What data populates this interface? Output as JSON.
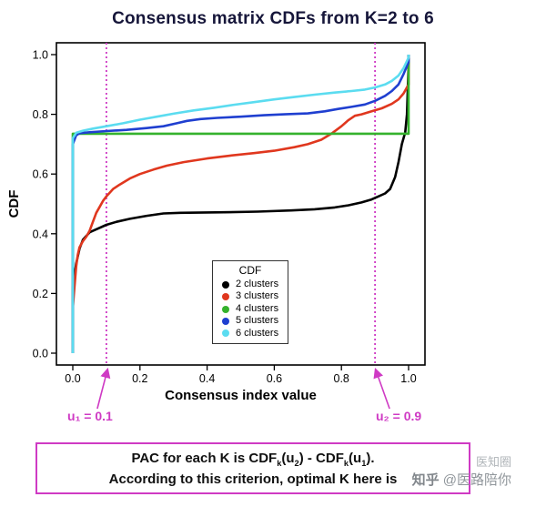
{
  "chart_data": {
    "type": "line",
    "title": "Consensus matrix CDFs from K=2 to 6",
    "xlabel": "Consensus index value",
    "ylabel": "CDF",
    "xlim": [
      0,
      1
    ],
    "ylim": [
      0,
      1
    ],
    "x_ticks": [
      0.0,
      0.2,
      0.4,
      0.6,
      0.8,
      1.0
    ],
    "y_ticks": [
      0.0,
      0.2,
      0.4,
      0.6,
      0.8,
      1.0
    ],
    "grid": false,
    "legend_title": "CDF",
    "legend_position": "inside-bottom-center",
    "series": [
      {
        "name": "2 clusters",
        "color": "#000000",
        "points": [
          [
            0,
            0
          ],
          [
            0,
            0.22
          ],
          [
            0.005,
            0.26
          ],
          [
            0.01,
            0.3
          ],
          [
            0.02,
            0.35
          ],
          [
            0.03,
            0.38
          ],
          [
            0.05,
            0.405
          ],
          [
            0.07,
            0.415
          ],
          [
            0.1,
            0.43
          ],
          [
            0.13,
            0.44
          ],
          [
            0.17,
            0.45
          ],
          [
            0.22,
            0.46
          ],
          [
            0.27,
            0.468
          ],
          [
            0.32,
            0.47
          ],
          [
            0.45,
            0.472
          ],
          [
            0.55,
            0.474
          ],
          [
            0.65,
            0.478
          ],
          [
            0.72,
            0.482
          ],
          [
            0.78,
            0.488
          ],
          [
            0.82,
            0.495
          ],
          [
            0.86,
            0.505
          ],
          [
            0.89,
            0.515
          ],
          [
            0.91,
            0.525
          ],
          [
            0.93,
            0.535
          ],
          [
            0.945,
            0.55
          ],
          [
            0.96,
            0.59
          ],
          [
            0.97,
            0.64
          ],
          [
            0.98,
            0.7
          ],
          [
            0.99,
            0.74
          ],
          [
            0.995,
            0.8
          ],
          [
            1,
            0.97
          ],
          [
            1,
            1
          ]
        ]
      },
      {
        "name": "3 clusters",
        "color": "#e0371e",
        "points": [
          [
            0,
            0
          ],
          [
            0,
            0.15
          ],
          [
            0.005,
            0.22
          ],
          [
            0.01,
            0.29
          ],
          [
            0.015,
            0.33
          ],
          [
            0.02,
            0.355
          ],
          [
            0.03,
            0.375
          ],
          [
            0.04,
            0.39
          ],
          [
            0.05,
            0.41
          ],
          [
            0.06,
            0.44
          ],
          [
            0.07,
            0.47
          ],
          [
            0.08,
            0.49
          ],
          [
            0.09,
            0.51
          ],
          [
            0.1,
            0.525
          ],
          [
            0.12,
            0.55
          ],
          [
            0.14,
            0.565
          ],
          [
            0.17,
            0.585
          ],
          [
            0.2,
            0.6
          ],
          [
            0.24,
            0.615
          ],
          [
            0.28,
            0.628
          ],
          [
            0.33,
            0.64
          ],
          [
            0.4,
            0.652
          ],
          [
            0.47,
            0.662
          ],
          [
            0.54,
            0.67
          ],
          [
            0.6,
            0.678
          ],
          [
            0.66,
            0.69
          ],
          [
            0.7,
            0.7
          ],
          [
            0.74,
            0.715
          ],
          [
            0.77,
            0.735
          ],
          [
            0.8,
            0.76
          ],
          [
            0.82,
            0.78
          ],
          [
            0.84,
            0.795
          ],
          [
            0.86,
            0.8
          ],
          [
            0.89,
            0.81
          ],
          [
            0.92,
            0.82
          ],
          [
            0.95,
            0.835
          ],
          [
            0.97,
            0.85
          ],
          [
            0.985,
            0.87
          ],
          [
            1,
            0.9
          ],
          [
            1,
            1
          ]
        ]
      },
      {
        "name": "4 clusters",
        "color": "#35b22d",
        "points": [
          [
            0,
            0
          ],
          [
            0,
            0.735
          ],
          [
            1,
            0.735
          ],
          [
            1,
            1
          ]
        ]
      },
      {
        "name": "5 clusters",
        "color": "#1f3fd0",
        "points": [
          [
            0,
            0
          ],
          [
            0,
            0.7
          ],
          [
            0.01,
            0.73
          ],
          [
            0.02,
            0.737
          ],
          [
            0.05,
            0.74
          ],
          [
            0.1,
            0.744
          ],
          [
            0.16,
            0.748
          ],
          [
            0.22,
            0.754
          ],
          [
            0.27,
            0.76
          ],
          [
            0.31,
            0.77
          ],
          [
            0.34,
            0.778
          ],
          [
            0.38,
            0.784
          ],
          [
            0.43,
            0.788
          ],
          [
            0.5,
            0.792
          ],
          [
            0.57,
            0.797
          ],
          [
            0.63,
            0.8
          ],
          [
            0.7,
            0.803
          ],
          [
            0.75,
            0.81
          ],
          [
            0.79,
            0.818
          ],
          [
            0.83,
            0.825
          ],
          [
            0.87,
            0.833
          ],
          [
            0.9,
            0.845
          ],
          [
            0.93,
            0.862
          ],
          [
            0.95,
            0.878
          ],
          [
            0.97,
            0.9
          ],
          [
            0.985,
            0.935
          ],
          [
            1,
            0.975
          ],
          [
            1,
            1
          ]
        ]
      },
      {
        "name": "6 clusters",
        "color": "#5bdcf0",
        "points": [
          [
            0,
            0
          ],
          [
            0,
            0.72
          ],
          [
            0.01,
            0.738
          ],
          [
            0.03,
            0.745
          ],
          [
            0.06,
            0.752
          ],
          [
            0.1,
            0.76
          ],
          [
            0.15,
            0.77
          ],
          [
            0.2,
            0.782
          ],
          [
            0.25,
            0.792
          ],
          [
            0.3,
            0.802
          ],
          [
            0.36,
            0.813
          ],
          [
            0.42,
            0.822
          ],
          [
            0.48,
            0.832
          ],
          [
            0.54,
            0.841
          ],
          [
            0.6,
            0.85
          ],
          [
            0.66,
            0.858
          ],
          [
            0.72,
            0.866
          ],
          [
            0.78,
            0.873
          ],
          [
            0.83,
            0.878
          ],
          [
            0.87,
            0.883
          ],
          [
            0.9,
            0.89
          ],
          [
            0.93,
            0.9
          ],
          [
            0.95,
            0.912
          ],
          [
            0.97,
            0.93
          ],
          [
            0.985,
            0.955
          ],
          [
            1,
            0.99
          ],
          [
            1,
            1
          ]
        ]
      }
    ],
    "cutoffs": [
      {
        "x": 0.1,
        "label": "u₁ = 0.1"
      },
      {
        "x": 0.9,
        "label": "u₂ = 0.9"
      }
    ],
    "cutoff_color": "#cf3ac4"
  },
  "note": {
    "f1": "PAC for each K is CDF",
    "sub_k1": "k",
    "f2": "(u",
    "sub_2": "2",
    "f3": ") - CDF",
    "sub_k2": "k",
    "f4": "(u",
    "sub_1": "1",
    "f5": ").",
    "line2": "According to this criterion, optimal K here is"
  },
  "watermark": {
    "brand": "知乎",
    "handle": "@医路陪你",
    "side_text": "医知圈"
  }
}
